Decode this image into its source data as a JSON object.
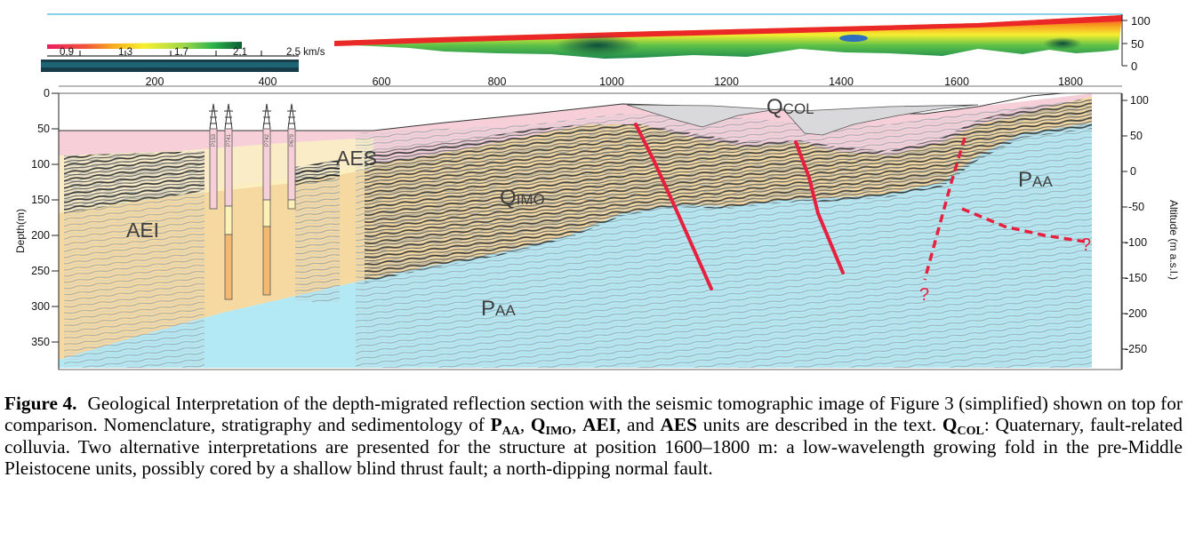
{
  "tomography": {
    "colorbar_ticks": [
      "0,9",
      "1,3",
      "1,7",
      "2,1",
      "2,5 km/s"
    ],
    "altitude_ticks": [
      "100",
      "50",
      "0"
    ]
  },
  "top_axis": {
    "ticks": [
      "200",
      "400",
      "600",
      "800",
      "1000",
      "1200",
      "1400",
      "1600",
      "1800"
    ]
  },
  "section": {
    "depth_axis_label": "Depth(m)",
    "depth_ticks": [
      "0",
      "50",
      "100",
      "150",
      "200",
      "250",
      "300",
      "350"
    ],
    "altitude_axis_label": "Altitude (m a.s.l.)",
    "altitude_ticks": [
      "100",
      "50",
      "0",
      "-50",
      "-100",
      "-150",
      "-200",
      "-250"
    ],
    "unit_labels": {
      "aes": "AES",
      "aei": "AEI",
      "qimo": {
        "main": "Q",
        "sub": "IMO"
      },
      "qcol": {
        "main": "Q",
        "sub": "COL"
      },
      "paa_left": {
        "main": "P",
        "sub": "AA"
      },
      "paa_right": {
        "main": "P",
        "sub": "AA"
      }
    },
    "well_labels": [
      "P153",
      "P741",
      "P742",
      "P679"
    ],
    "question_marks": [
      "?",
      "?"
    ]
  },
  "caption": {
    "label": "Figure 4.",
    "text_1": "Geological Interpretation of the depth-migrated reflection section with the seismic tomographic image of Figure 3 (simplified) shown on top for comparison. Nomenclature, stratigraphy and sedimentology of ",
    "paa": {
      "main": "P",
      "sub": "AA"
    },
    "sep_1": ", ",
    "qimo": {
      "main": "Q",
      "sub": "IMO"
    },
    "sep_2": ", ",
    "aei": "AEI",
    "sep_3": ", and ",
    "aes": "AES",
    "text_2": " units are described in the text. ",
    "qcol": {
      "main": "Q",
      "sub": "COL"
    },
    "text_3": ": Quaternary, fault-related colluvia. Two alternative interpretations are presented for the structure at position 1600–1800 m: a low-wavelength growing fold in the pre-Middle Pleistocene units, possibly cored by a shallow blind thrust fault; a north-dipping normal fault."
  },
  "colors": {
    "pink": "#f6cfd9",
    "sand": "#f6d9a0",
    "cyan": "#b3e9f4",
    "fault_red": "#e8203f",
    "colluvium_gray": "#d9d9db"
  }
}
